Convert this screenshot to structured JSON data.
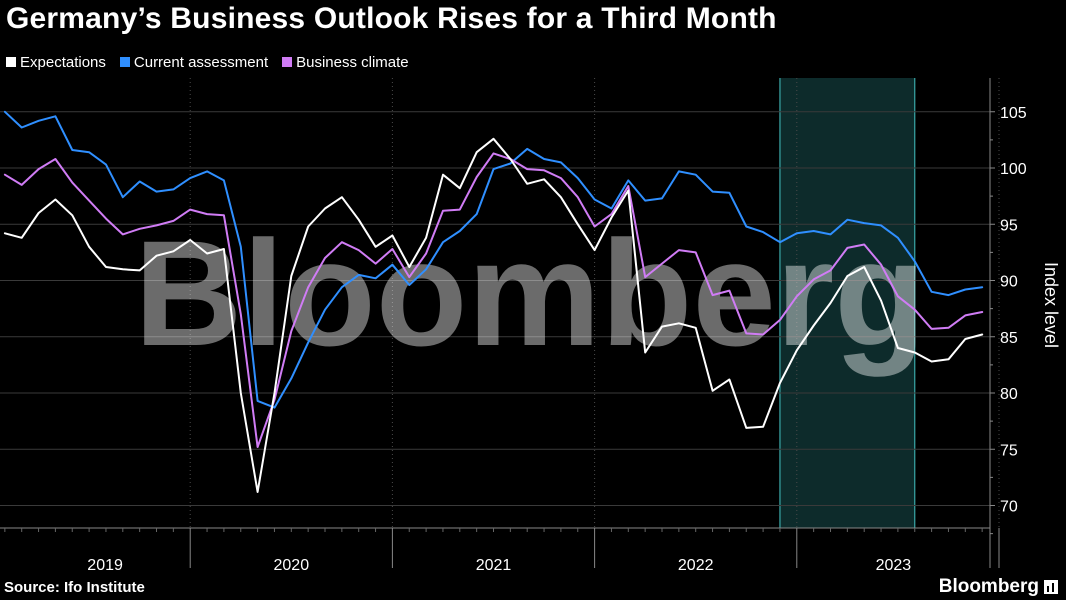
{
  "header": {
    "title": "Germany’s Business Outlook Rises for a Third Month"
  },
  "footer": {
    "source": "Source: Ifo Institute",
    "brand": "Bloomberg"
  },
  "watermark": "Bloomberg",
  "colors": {
    "expectations": "#ffffff",
    "current_assessment": "#2f8fff",
    "business_climate": "#d07cf5",
    "highlight": "#0d2b2b",
    "highlight_border": "#3aa8a8",
    "grid": "#3a3a3a"
  },
  "chart_data": {
    "type": "line",
    "title": "Germany’s Business Outlook Rises for a Third Month",
    "ylabel": "Index level",
    "ylim": [
      68,
      108
    ],
    "yticks": [
      70,
      75,
      80,
      85,
      90,
      95,
      100,
      105
    ],
    "years": [
      "2019",
      "2020",
      "2021",
      "2022",
      "2023"
    ],
    "x_start": "2019-01",
    "highlight": {
      "from": "2022-12",
      "to": "2023-08"
    },
    "grid": true,
    "legend_position": "top-left",
    "series": [
      {
        "name": "Expectations",
        "color_key": "expectations",
        "values": [
          94.2,
          93.8,
          96.0,
          97.2,
          95.8,
          93.0,
          91.2,
          91.0,
          90.9,
          92.2,
          92.6,
          93.6,
          92.4,
          92.8,
          80.0,
          71.2,
          80.0,
          90.4,
          94.8,
          96.4,
          97.4,
          95.4,
          93.0,
          94.0,
          91.2,
          93.8,
          99.4,
          98.2,
          101.4,
          102.6,
          100.8,
          98.6,
          99.0,
          97.4,
          95.0,
          92.7,
          95.6,
          98.0,
          83.6,
          85.9,
          86.2,
          85.8,
          80.2,
          81.2,
          76.9,
          77.0,
          80.9,
          83.8,
          86.0,
          88.0,
          90.4,
          91.2,
          88.2,
          84.0,
          83.6,
          82.8,
          83.0,
          84.8,
          85.2
        ]
      },
      {
        "name": "Current assessment",
        "color_key": "current_assessment",
        "values": [
          105.0,
          103.6,
          104.2,
          104.6,
          101.6,
          101.4,
          100.3,
          97.4,
          98.8,
          97.9,
          98.1,
          99.1,
          99.7,
          98.9,
          93.0,
          79.3,
          78.7,
          81.3,
          84.5,
          87.4,
          89.4,
          90.5,
          90.2,
          91.4,
          89.6,
          91.0,
          93.4,
          94.4,
          95.9,
          99.9,
          100.4,
          101.7,
          100.8,
          100.5,
          99.1,
          97.2,
          96.4,
          98.9,
          97.1,
          97.3,
          99.7,
          99.4,
          97.9,
          97.8,
          94.8,
          94.3,
          93.4,
          94.2,
          94.4,
          94.1,
          95.4,
          95.1,
          94.9,
          93.8,
          91.7,
          89.0,
          88.7,
          89.2,
          89.4
        ]
      },
      {
        "name": "Business climate",
        "color_key": "business_climate",
        "values": [
          99.4,
          98.5,
          99.9,
          100.8,
          98.7,
          97.1,
          95.5,
          94.1,
          94.6,
          94.9,
          95.3,
          96.3,
          95.9,
          95.8,
          87.0,
          75.2,
          79.4,
          85.5,
          89.4,
          92.0,
          93.4,
          92.7,
          91.5,
          92.8,
          90.3,
          92.4,
          96.2,
          96.3,
          99.2,
          101.3,
          100.8,
          99.9,
          99.8,
          99.1,
          97.4,
          94.8,
          95.9,
          98.4,
          90.3,
          91.5,
          92.7,
          92.5,
          88.7,
          89.1,
          85.3,
          85.2,
          86.5,
          88.6,
          90.1,
          90.9,
          92.9,
          93.2,
          91.4,
          88.6,
          87.4,
          85.7,
          85.8,
          86.9,
          87.2
        ]
      }
    ]
  }
}
